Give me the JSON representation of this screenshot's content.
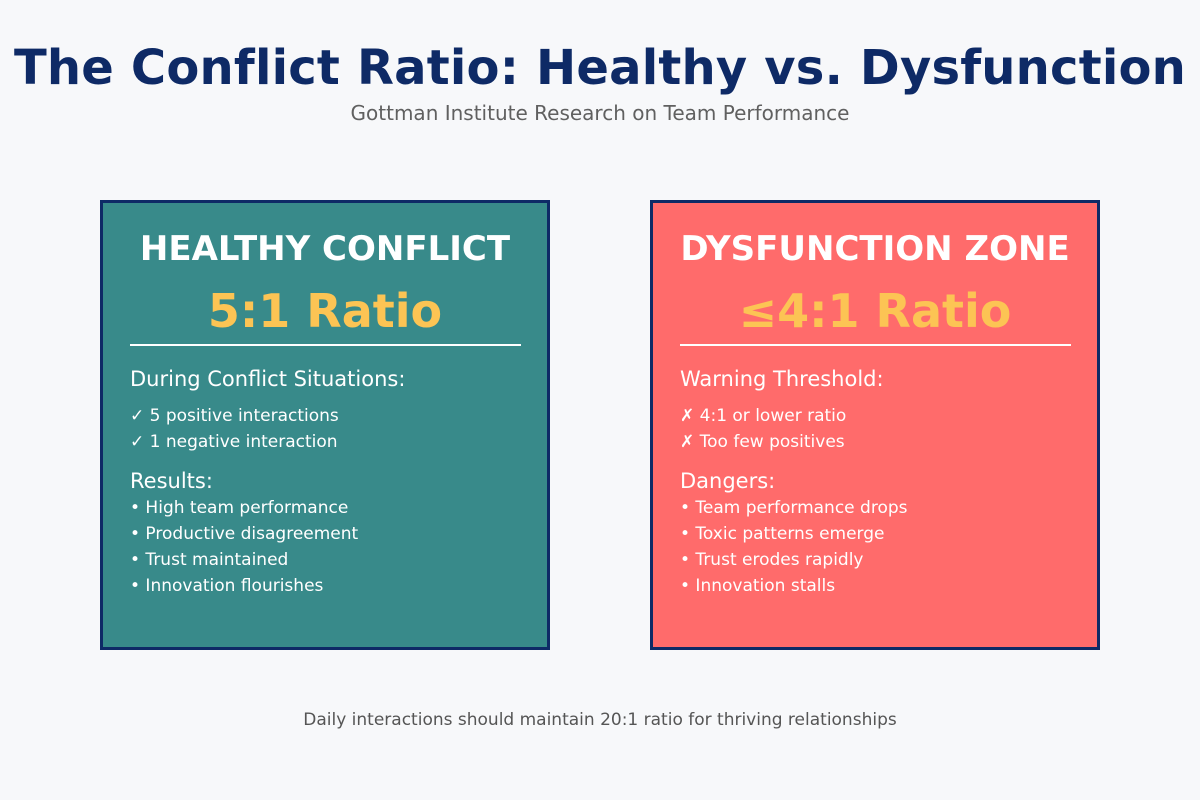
{
  "header": {
    "title": "The Conflict Ratio: Healthy vs. Dysfunction",
    "subtitle": "Gottman Institute Research on Team Performance"
  },
  "cards": [
    {
      "heading": "HEALTHY CONFLICT",
      "ratio": "5:1 Ratio",
      "section1_label": "During Conflict Situations:",
      "section1_items": [
        "✓ 5 positive interactions",
        "✓ 1 negative interaction"
      ],
      "section2_label": "Results:",
      "section2_items": [
        "• High team performance",
        "• Productive disagreement",
        "• Trust maintained",
        "• Innovation flourishes"
      ],
      "background_color": "#388a8a"
    },
    {
      "heading": "DYSFUNCTION ZONE",
      "ratio": "≤4:1 Ratio",
      "section1_label": "Warning Threshold:",
      "section1_items": [
        "✗ 4:1 or lower ratio",
        "✗ Too few positives"
      ],
      "section2_label": "Dangers:",
      "section2_items": [
        "• Team performance drops",
        "• Toxic patterns emerge",
        "• Trust erodes rapidly",
        "• Innovation stalls"
      ],
      "background_color": "#ff6b6b"
    }
  ],
  "footer": {
    "note": "Daily interactions should maintain 20:1 ratio for thriving relationships"
  },
  "colors": {
    "title": "#0e2a66",
    "border": "#0e2a66",
    "ratio_accent": "#fcc454",
    "page_background": "#f7f8fa"
  }
}
